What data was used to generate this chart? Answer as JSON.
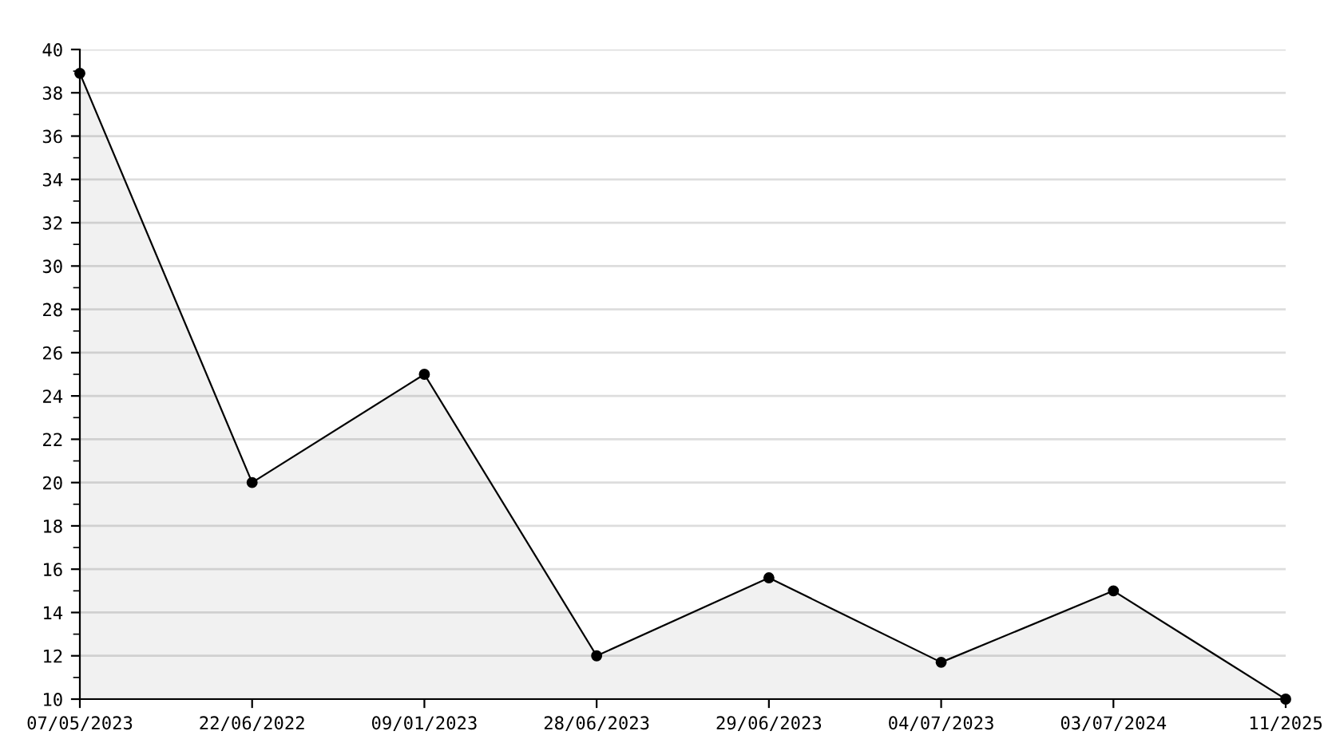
{
  "chart_data": {
    "type": "area",
    "categories": [
      "07/05/2023",
      "22/06/2022",
      "09/01/2023",
      "28/06/2023",
      "29/06/2023",
      "04/07/2023",
      "03/07/2024",
      "11/2025"
    ],
    "series": [
      {
        "color": "#000000",
        "values": [
          38.9,
          20,
          25,
          12,
          15.6,
          11.7,
          15,
          10
        ]
      }
    ],
    "ylim": [
      10,
      40
    ],
    "yticks": [
      10,
      12,
      14,
      16,
      18,
      20,
      22,
      24,
      26,
      28,
      30,
      32,
      34,
      36,
      38,
      40
    ],
    "grid": "y",
    "marker": "circle",
    "line_style": "solid"
  }
}
